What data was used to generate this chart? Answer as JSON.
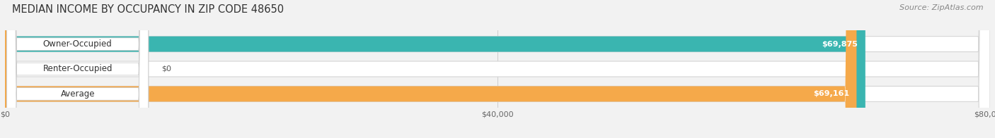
{
  "title": "MEDIAN INCOME BY OCCUPANCY IN ZIP CODE 48650",
  "source": "Source: ZipAtlas.com",
  "categories": [
    "Owner-Occupied",
    "Renter-Occupied",
    "Average"
  ],
  "values": [
    69875,
    0,
    69161
  ],
  "bar_colors": [
    "#3ab5b0",
    "#c5a8d0",
    "#f5a94a"
  ],
  "value_labels": [
    "$69,875",
    "$0",
    "$69,161"
  ],
  "xlim": [
    0,
    80000
  ],
  "xticks": [
    0,
    40000,
    80000
  ],
  "xtick_labels": [
    "$0",
    "$40,000",
    "$80,000"
  ],
  "bar_height": 0.62,
  "background_color": "#f2f2f2",
  "title_fontsize": 10.5,
  "source_fontsize": 8,
  "label_fontsize": 8.5,
  "value_fontsize": 8
}
